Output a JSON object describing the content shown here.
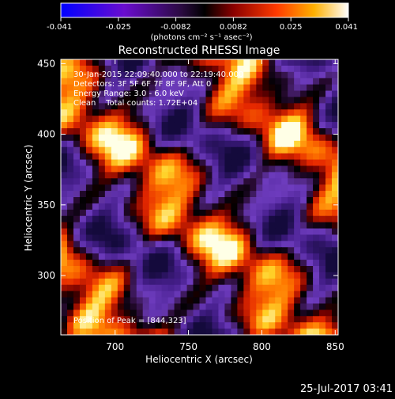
{
  "colorbar": {
    "tick_labels": [
      "-0.041",
      "-0.025",
      "-0.0082",
      "0.0082",
      "0.025",
      "0.041"
    ],
    "unit_label": "(photons cm⁻² s⁻¹ asec⁻²)",
    "range": [
      -0.041,
      0.041
    ]
  },
  "image_title": "Reconstructed RHESSI Image",
  "info": {
    "time_range": "30-Jan-2015 22:09:40.000 to 22:19:40.000",
    "detectors": "Detectors: 3F 5F 6F 7F 8F 9F, Att 0",
    "energy": "Energy Range: 3.0 - 6.0 keV",
    "method_counts": "Clean    Total counts: 1.72E+04",
    "peak": "Position of Peak = [844,323]"
  },
  "axes": {
    "xlabel": "Heliocentric X (arcsec)",
    "ylabel": "Heliocentric Y (arcsec)",
    "x_range": [
      663,
      852
    ],
    "y_range": [
      258,
      453
    ],
    "x_ticks": [
      700,
      750,
      800,
      850
    ],
    "y_ticks": [
      300,
      350,
      400,
      450
    ]
  },
  "footer_timestamp": "25-Jul-2017 03:41"
}
